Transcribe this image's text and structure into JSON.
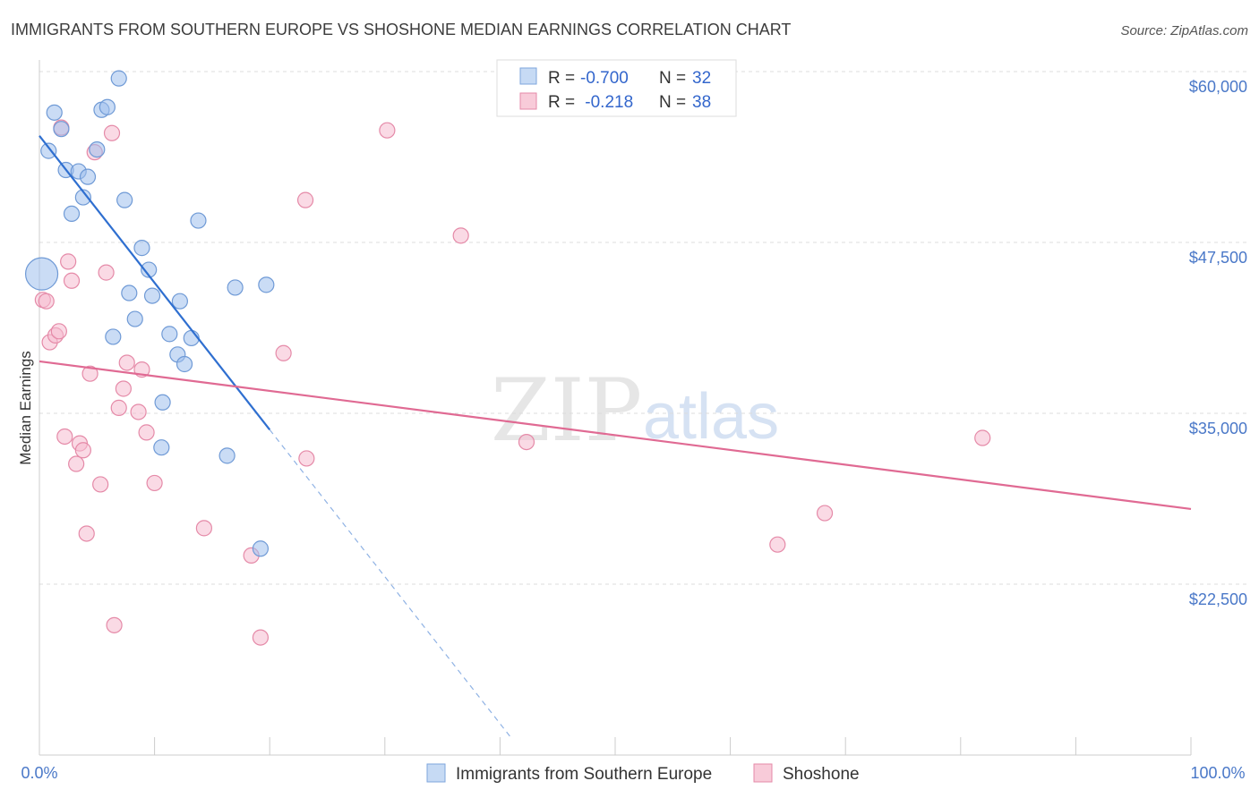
{
  "chart_data": {
    "type": "scatter",
    "title": "IMMIGRANTS FROM SOUTHERN EUROPE VS SHOSHONE MEDIAN EARNINGS CORRELATION CHART",
    "source": "Source: ZipAtlas.com",
    "ylabel": "Median Earnings",
    "xlabel": "",
    "xlim": [
      0,
      100
    ],
    "ylim": [
      10000,
      62000
    ],
    "x_ticks": [
      "0.0%",
      "100.0%"
    ],
    "y_ticks": [
      {
        "value": 22500,
        "label": "$22,500"
      },
      {
        "value": 35000,
        "label": "$35,000"
      },
      {
        "value": 47500,
        "label": "$47,500"
      },
      {
        "value": 60000,
        "label": "$60,000"
      }
    ],
    "watermark": {
      "zip": "ZIP",
      "atlas": "atlas"
    },
    "legend": [
      {
        "r_label": "R = ",
        "r_value": "-0.700",
        "n_label": "N = ",
        "n_value": "32"
      },
      {
        "r_label": "R = ",
        "r_value": " -0.218",
        "n_label": "N = ",
        "n_value": "38"
      }
    ],
    "series": [
      {
        "name": "Immigrants from Southern Europe",
        "color": "#9ec0ec",
        "stroke": "#6f9ad6",
        "trend_color": "#2f6fd0",
        "trend": {
          "x0": 0,
          "y0": 55300,
          "x1": 20,
          "y1": 33800,
          "x_dash_end": 41
        },
        "points": [
          {
            "x": 0.2,
            "y": 45200,
            "big": true
          },
          {
            "x": 0.8,
            "y": 54200
          },
          {
            "x": 1.3,
            "y": 57000
          },
          {
            "x": 1.9,
            "y": 55800
          },
          {
            "x": 2.3,
            "y": 52800
          },
          {
            "x": 2.8,
            "y": 49600
          },
          {
            "x": 3.4,
            "y": 52700
          },
          {
            "x": 3.8,
            "y": 50800
          },
          {
            "x": 4.2,
            "y": 52300
          },
          {
            "x": 5.0,
            "y": 54300
          },
          {
            "x": 5.4,
            "y": 57200
          },
          {
            "x": 5.9,
            "y": 57400
          },
          {
            "x": 6.4,
            "y": 40600
          },
          {
            "x": 6.9,
            "y": 59500
          },
          {
            "x": 7.4,
            "y": 50600
          },
          {
            "x": 7.8,
            "y": 43800
          },
          {
            "x": 8.3,
            "y": 41900
          },
          {
            "x": 8.9,
            "y": 47100
          },
          {
            "x": 9.5,
            "y": 45500
          },
          {
            "x": 9.8,
            "y": 43600
          },
          {
            "x": 10.7,
            "y": 35800
          },
          {
            "x": 10.6,
            "y": 32500
          },
          {
            "x": 11.3,
            "y": 40800
          },
          {
            "x": 12.0,
            "y": 39300
          },
          {
            "x": 12.2,
            "y": 43200
          },
          {
            "x": 12.6,
            "y": 38600
          },
          {
            "x": 13.2,
            "y": 40500
          },
          {
            "x": 13.8,
            "y": 49100
          },
          {
            "x": 16.3,
            "y": 31900
          },
          {
            "x": 17.0,
            "y": 44200
          },
          {
            "x": 19.2,
            "y": 25100
          },
          {
            "x": 19.7,
            "y": 44400
          }
        ]
      },
      {
        "name": "Shoshone",
        "color": "#f6bccf",
        "stroke": "#e58aa8",
        "trend_color": "#e06a93",
        "trend": {
          "x0": 0,
          "y0": 38800,
          "x1": 100,
          "y1": 28000
        },
        "points": [
          {
            "x": 0.3,
            "y": 43300
          },
          {
            "x": 0.6,
            "y": 43200
          },
          {
            "x": 0.9,
            "y": 40200
          },
          {
            "x": 1.4,
            "y": 40700
          },
          {
            "x": 1.7,
            "y": 41000
          },
          {
            "x": 1.9,
            "y": 55900
          },
          {
            "x": 2.2,
            "y": 33300
          },
          {
            "x": 2.5,
            "y": 46100
          },
          {
            "x": 2.8,
            "y": 44700
          },
          {
            "x": 3.2,
            "y": 31300
          },
          {
            "x": 3.5,
            "y": 32800
          },
          {
            "x": 3.8,
            "y": 32300
          },
          {
            "x": 4.1,
            "y": 26200
          },
          {
            "x": 4.4,
            "y": 37900
          },
          {
            "x": 4.8,
            "y": 54100
          },
          {
            "x": 5.3,
            "y": 29800
          },
          {
            "x": 5.8,
            "y": 45300
          },
          {
            "x": 6.3,
            "y": 55500
          },
          {
            "x": 6.5,
            "y": 19500
          },
          {
            "x": 6.9,
            "y": 35400
          },
          {
            "x": 7.3,
            "y": 36800
          },
          {
            "x": 7.6,
            "y": 38700
          },
          {
            "x": 8.6,
            "y": 35100
          },
          {
            "x": 8.9,
            "y": 38200
          },
          {
            "x": 9.3,
            "y": 33600
          },
          {
            "x": 10.0,
            "y": 29900
          },
          {
            "x": 14.3,
            "y": 26600
          },
          {
            "x": 18.4,
            "y": 24600
          },
          {
            "x": 19.2,
            "y": 18600
          },
          {
            "x": 21.2,
            "y": 39400
          },
          {
            "x": 23.1,
            "y": 50600
          },
          {
            "x": 23.2,
            "y": 31700
          },
          {
            "x": 30.2,
            "y": 55700
          },
          {
            "x": 36.6,
            "y": 48000
          },
          {
            "x": 42.3,
            "y": 32900
          },
          {
            "x": 64.1,
            "y": 25400
          },
          {
            "x": 68.2,
            "y": 27700
          },
          {
            "x": 81.9,
            "y": 33200
          }
        ]
      }
    ]
  }
}
